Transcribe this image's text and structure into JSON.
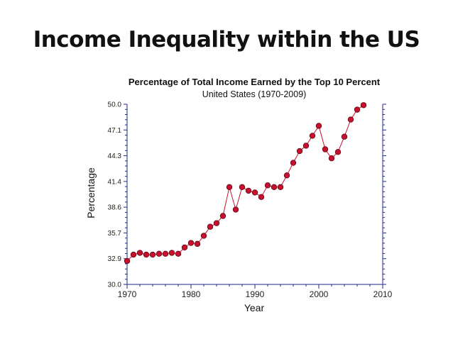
{
  "slide": {
    "title": "Income Inequality within the US"
  },
  "chart_data": {
    "type": "line",
    "title": "Percentage of Total Income Earned by the Top 10 Percent",
    "subtitle": "United States (1970-2009)",
    "xlabel": "Year",
    "ylabel": "Percentage",
    "xlim": [
      1970,
      2010
    ],
    "ylim": [
      30.0,
      50.0
    ],
    "x_ticks": [
      "1970",
      "1980",
      "1990",
      "2000",
      "2010"
    ],
    "y_ticks": [
      "30.0",
      "32.9",
      "35.7",
      "38.6",
      "41.4",
      "44.3",
      "47.1",
      "50.0"
    ],
    "grid": false,
    "series": [
      {
        "color": "#c8102e",
        "x": [
          1970,
          1971,
          1972,
          1973,
          1974,
          1975,
          1976,
          1977,
          1978,
          1979,
          1980,
          1981,
          1982,
          1983,
          1984,
          1985,
          1986,
          1987,
          1988,
          1989,
          1990,
          1991,
          1992,
          1993,
          1994,
          1995,
          1996,
          1997,
          1998,
          1999,
          2000,
          2001,
          2002,
          2003,
          2004,
          2005,
          2006,
          2007
        ],
        "y": [
          32.6,
          33.3,
          33.5,
          33.3,
          33.3,
          33.4,
          33.4,
          33.5,
          33.4,
          34.1,
          34.6,
          34.5,
          35.4,
          36.4,
          36.8,
          37.6,
          40.8,
          38.3,
          40.8,
          40.4,
          40.2,
          39.7,
          41.0,
          40.8,
          40.8,
          42.1,
          43.5,
          44.8,
          45.4,
          46.5,
          47.6,
          45.0,
          44.0,
          44.7,
          46.4,
          48.3,
          49.4,
          49.9
        ]
      }
    ]
  }
}
